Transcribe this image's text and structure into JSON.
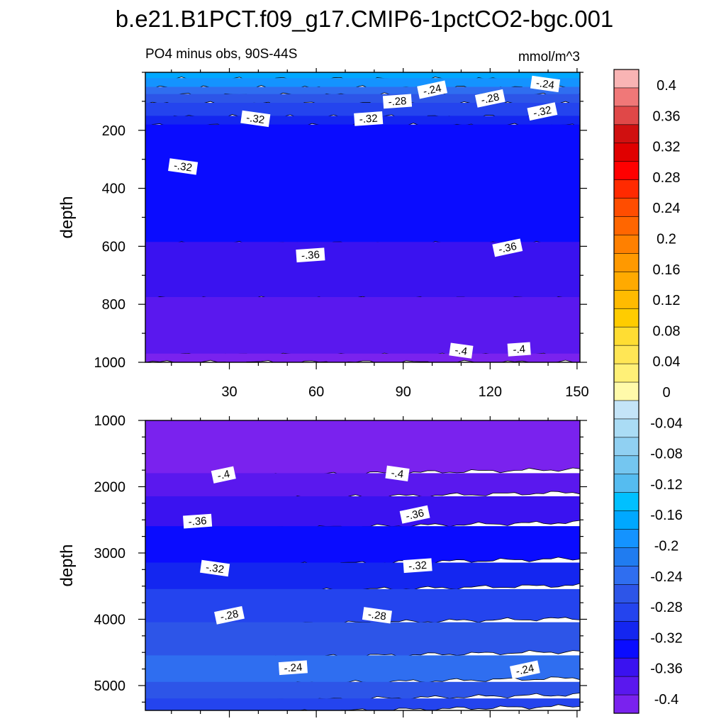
{
  "chart_data": {
    "type": "heatmap",
    "title": "b.e21.B1PCT.f09_g17.CMIP6-1pctCO2-bgc.001",
    "region_label": "PO4 minus obs, 90S-44S",
    "units_label": "mmol/m^3",
    "xlim": [
      1,
      151
    ],
    "x_ticks": [
      30,
      60,
      90,
      120,
      150
    ],
    "x_tick_labels": [
      "30",
      "60",
      "90",
      "120",
      "150"
    ],
    "panels": [
      {
        "name": "upper",
        "ylabel": "depth",
        "ylim": [
          0,
          1000
        ],
        "y_ticks": [
          200,
          400,
          600,
          800,
          1000
        ],
        "y_tick_labels": [
          "200",
          "400",
          "600",
          "800",
          "1000"
        ],
        "bands": [
          {
            "from": 0,
            "to": 25,
            "value": -0.18
          },
          {
            "from": 25,
            "to": 55,
            "value": -0.22
          },
          {
            "from": 55,
            "to": 80,
            "value": -0.26
          },
          {
            "from": 80,
            "to": 110,
            "value": -0.28
          },
          {
            "from": 110,
            "to": 155,
            "value": -0.3
          },
          {
            "from": 155,
            "to": 185,
            "value": -0.32
          },
          {
            "from": 185,
            "to": 590,
            "value": -0.34
          },
          {
            "from": 590,
            "to": 780,
            "value": -0.36
          },
          {
            "from": 780,
            "to": 975,
            "value": -0.38
          },
          {
            "from": 975,
            "to": 1000,
            "value": -0.4
          }
        ],
        "contour_labels": [
          {
            "text": "-.24",
            "x": 100,
            "depth": 60
          },
          {
            "text": "-.24",
            "x": 139,
            "depth": 40
          },
          {
            "text": "-.28",
            "x": 88,
            "depth": 100
          },
          {
            "text": "-.28",
            "x": 120,
            "depth": 90
          },
          {
            "text": "-.32",
            "x": 39,
            "depth": 160
          },
          {
            "text": "-.32",
            "x": 78,
            "depth": 160
          },
          {
            "text": "-.32",
            "x": 138,
            "depth": 135
          },
          {
            "text": "-.32",
            "x": 14,
            "depth": 325
          },
          {
            "text": "-.36",
            "x": 58,
            "depth": 630
          },
          {
            "text": "-.36",
            "x": 126,
            "depth": 605
          },
          {
            "text": "-.4",
            "x": 110,
            "depth": 960
          },
          {
            "text": "-.4",
            "x": 130,
            "depth": 955
          }
        ]
      },
      {
        "name": "lower",
        "ylabel": "depth",
        "ylim": [
          1000,
          5375
        ],
        "y_ticks": [
          1000,
          2000,
          3000,
          4000,
          5000
        ],
        "y_tick_labels": [
          "1000",
          "2000",
          "3000",
          "4000",
          "5000"
        ],
        "bands": [
          {
            "from": 1000,
            "to": 1800,
            "value": -0.4
          },
          {
            "from": 1800,
            "to": 2150,
            "value": -0.38
          },
          {
            "from": 2150,
            "to": 2600,
            "value": -0.36
          },
          {
            "from": 2600,
            "to": 3150,
            "value": -0.34
          },
          {
            "from": 3150,
            "to": 3550,
            "value": -0.32
          },
          {
            "from": 3550,
            "to": 4050,
            "value": -0.3
          },
          {
            "from": 4050,
            "to": 4550,
            "value": -0.28
          },
          {
            "from": 4550,
            "to": 4950,
            "value": -0.26
          },
          {
            "from": 4950,
            "to": 5200,
            "value": -0.28
          },
          {
            "from": 5200,
            "to": 5375,
            "value": -0.3
          }
        ],
        "contour_labels": [
          {
            "text": "-.4",
            "x": 28,
            "depth": 1820
          },
          {
            "text": "-.4",
            "x": 88,
            "depth": 1800
          },
          {
            "text": "-.36",
            "x": 19,
            "depth": 2520
          },
          {
            "text": "-.36",
            "x": 94,
            "depth": 2420
          },
          {
            "text": "-.32",
            "x": 25,
            "depth": 3230
          },
          {
            "text": "-.32",
            "x": 95,
            "depth": 3190
          },
          {
            "text": "-.28",
            "x": 30,
            "depth": 3940
          },
          {
            "text": "-.28",
            "x": 81,
            "depth": 3940
          },
          {
            "text": "-.24",
            "x": 52,
            "depth": 4730
          },
          {
            "text": "-.24",
            "x": 132,
            "depth": 4760
          }
        ]
      }
    ],
    "colorbar": {
      "levels": [
        "0.4",
        "0.36",
        "0.32",
        "0.28",
        "0.24",
        "0.2",
        "0.16",
        "0.12",
        "0.08",
        "0.04",
        "0",
        "-0.04",
        "-0.08",
        "-0.12",
        "-0.16",
        "-0.2",
        "-0.24",
        "-0.28",
        "-0.32",
        "-0.36",
        "-0.4"
      ],
      "colors": [
        "#f9b4b4",
        "#f07878",
        "#e04848",
        "#d01010",
        "#e00000",
        "#ff0000",
        "#ff2a00",
        "#ff4d00",
        "#ff6600",
        "#ff8000",
        "#ff9900",
        "#ffaa00",
        "#ffbb00",
        "#ffcc00",
        "#ffdd33",
        "#ffe655",
        "#fff077",
        "#fffaaa",
        "#c4e4f8",
        "#aadcf5",
        "#90d0f2",
        "#74c6f0",
        "#55bcf0",
        "#00c0ff",
        "#00a8ff",
        "#1493ff",
        "#207cf0",
        "#2f6ef0",
        "#2d55e8",
        "#2444ee",
        "#1426f0",
        "#0a0cff",
        "#3a12f0",
        "#5a18ee",
        "#7a22ee"
      ]
    }
  }
}
